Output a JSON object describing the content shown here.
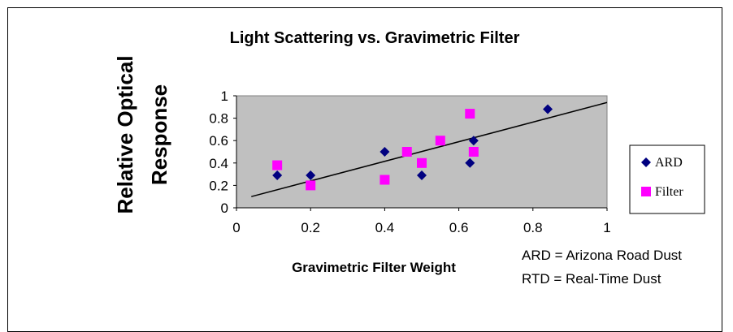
{
  "chart_data": {
    "type": "scatter",
    "title": "Light Scattering vs. Gravimetric Filter",
    "xlabel": "Gravimetric Filter Weight",
    "ylabel": "Relative Optical Response",
    "ylabel_lines": [
      "Relative Optical",
      "Response"
    ],
    "xlim": [
      0,
      1
    ],
    "ylim": [
      0,
      1
    ],
    "x_ticks": [
      "0",
      "0.2",
      "0.4",
      "0.6",
      "0.8",
      "1"
    ],
    "y_ticks": [
      "0",
      "0.2",
      "0.4",
      "0.6",
      "0.8",
      "1"
    ],
    "grid": false,
    "plot_background": "#c0c0c0",
    "legend_position": "right",
    "series": [
      {
        "name": "ARD",
        "marker": "diamond",
        "color": "#000080",
        "points": [
          {
            "x": 0.11,
            "y": 0.29
          },
          {
            "x": 0.2,
            "y": 0.29
          },
          {
            "x": 0.4,
            "y": 0.5
          },
          {
            "x": 0.5,
            "y": 0.29
          },
          {
            "x": 0.63,
            "y": 0.4
          },
          {
            "x": 0.64,
            "y": 0.6
          },
          {
            "x": 0.84,
            "y": 0.88
          }
        ]
      },
      {
        "name": "Filter",
        "marker": "square",
        "color": "#ff00ff",
        "points": [
          {
            "x": 0.11,
            "y": 0.38
          },
          {
            "x": 0.2,
            "y": 0.2
          },
          {
            "x": 0.4,
            "y": 0.25
          },
          {
            "x": 0.46,
            "y": 0.5
          },
          {
            "x": 0.5,
            "y": 0.4
          },
          {
            "x": 0.55,
            "y": 0.6
          },
          {
            "x": 0.63,
            "y": 0.84
          },
          {
            "x": 0.64,
            "y": 0.5
          }
        ]
      }
    ],
    "trendline": {
      "x": [
        0.04,
        1.0
      ],
      "y": [
        0.1,
        0.94
      ],
      "color": "#000000"
    },
    "annotations": [
      "ARD = Arizona Road Dust",
      "RTD = Real-Time Dust"
    ]
  }
}
